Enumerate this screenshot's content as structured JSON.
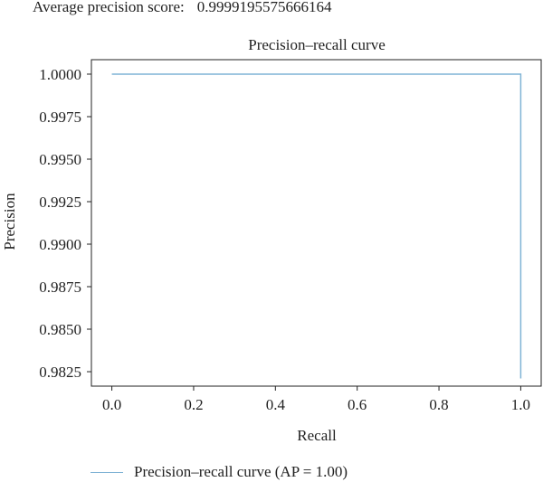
{
  "header": {
    "label": "Average precision score:",
    "value": "0.9999195575666164"
  },
  "chart_data": {
    "type": "line",
    "title": "Precision–recall curve",
    "xlabel": "Recall",
    "ylabel": "Precision",
    "xlim": [
      -0.05,
      1.05
    ],
    "ylim": [
      0.98165,
      1.00085
    ],
    "x_ticks": [
      0.0,
      0.2,
      0.4,
      0.6,
      0.8,
      1.0
    ],
    "x_tick_labels": [
      "0.0",
      "0.2",
      "0.4",
      "0.6",
      "0.8",
      "1.0"
    ],
    "y_ticks": [
      1.0,
      0.9975,
      0.995,
      0.9925,
      0.99,
      0.9875,
      0.985,
      0.9825
    ],
    "y_tick_labels": [
      "1.0000",
      "0.9975",
      "0.9950",
      "0.9925",
      "0.9900",
      "0.9875",
      "0.9850",
      "0.9825"
    ],
    "grid": false,
    "legend_position": "bottom",
    "series": [
      {
        "name": "Precision–recall curve (AP = 1.00)",
        "color": "#7fb3d5",
        "x": [
          0.0,
          1.0,
          1.0
        ],
        "y": [
          1.0,
          1.0,
          0.9821
        ]
      }
    ]
  }
}
